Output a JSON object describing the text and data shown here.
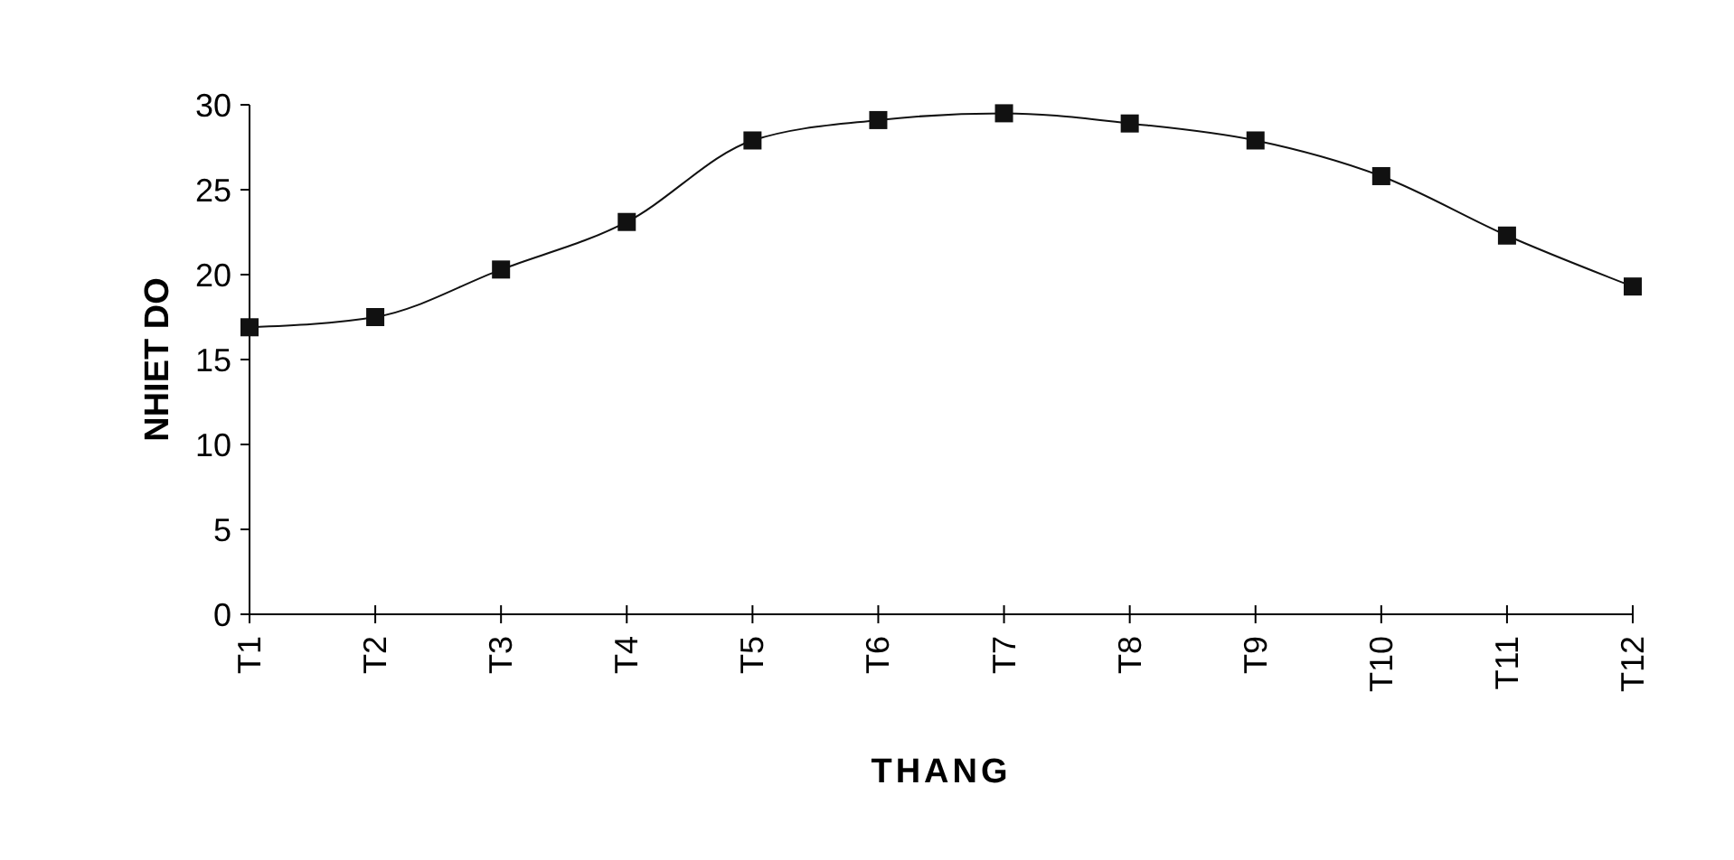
{
  "chart_data": {
    "type": "line",
    "xlabel": "THANG",
    "ylabel": "NHIET DO",
    "categories": [
      "T1",
      "T2",
      "T3",
      "T4",
      "T5",
      "T6",
      "T7",
      "T8",
      "T9",
      "T10",
      "T11",
      "T12"
    ],
    "series": [
      {
        "color": "#111111",
        "values": [
          16.9,
          17.5,
          20.3,
          23.1,
          27.9,
          29.1,
          29.5,
          28.9,
          27.9,
          25.8,
          22.3,
          19.3
        ]
      }
    ],
    "ylim": [
      0,
      30
    ],
    "yticks": [
      0,
      5,
      10,
      15,
      20,
      25,
      30
    ],
    "grid": false,
    "marker": "square",
    "line_style": "solid"
  }
}
